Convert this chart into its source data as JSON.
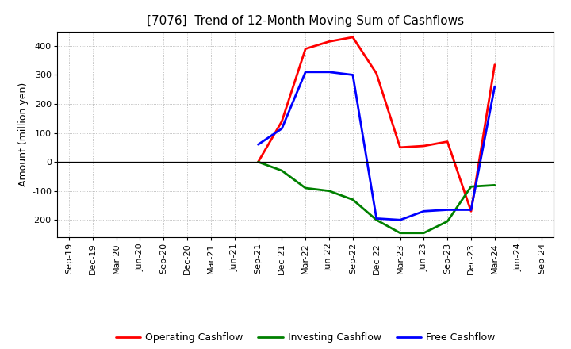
{
  "title": "[7076]  Trend of 12-Month Moving Sum of Cashflows",
  "ylabel": "Amount (million yen)",
  "ylim": [
    -260,
    450
  ],
  "yticks": [
    -200,
    -100,
    0,
    100,
    200,
    300,
    400
  ],
  "x_labels": [
    "Sep-19",
    "Dec-19",
    "Mar-20",
    "Jun-20",
    "Sep-20",
    "Dec-20",
    "Mar-21",
    "Jun-21",
    "Sep-21",
    "Dec-21",
    "Mar-22",
    "Jun-22",
    "Sep-22",
    "Dec-22",
    "Mar-23",
    "Jun-23",
    "Sep-23",
    "Dec-23",
    "Mar-24",
    "Jun-24",
    "Sep-24"
  ],
  "operating_cashflow": {
    "color": "#ff0000",
    "label": "Operating Cashflow",
    "x_indices": [
      8,
      9,
      10,
      11,
      12,
      13,
      14,
      15,
      16,
      17,
      18
    ],
    "values": [
      0,
      140,
      390,
      415,
      430,
      305,
      50,
      55,
      70,
      -170,
      335
    ]
  },
  "investing_cashflow": {
    "color": "#008000",
    "label": "Investing Cashflow",
    "x_indices": [
      8,
      9,
      10,
      11,
      12,
      13,
      14,
      15,
      16,
      17,
      18
    ],
    "values": [
      0,
      -30,
      -90,
      -100,
      -130,
      -200,
      -245,
      -245,
      -205,
      -85,
      -80
    ]
  },
  "free_cashflow": {
    "color": "#0000ff",
    "label": "Free Cashflow",
    "x_indices": [
      8,
      9,
      10,
      11,
      12,
      13,
      14,
      15,
      16,
      17,
      18
    ],
    "values": [
      60,
      115,
      310,
      310,
      300,
      -195,
      -200,
      -170,
      -165,
      -165,
      260
    ]
  },
  "background_color": "#ffffff",
  "grid_color": "#b0b0b0",
  "title_fontsize": 11,
  "axis_fontsize": 9,
  "tick_fontsize": 8,
  "legend_fontsize": 9,
  "linewidth": 2.0
}
